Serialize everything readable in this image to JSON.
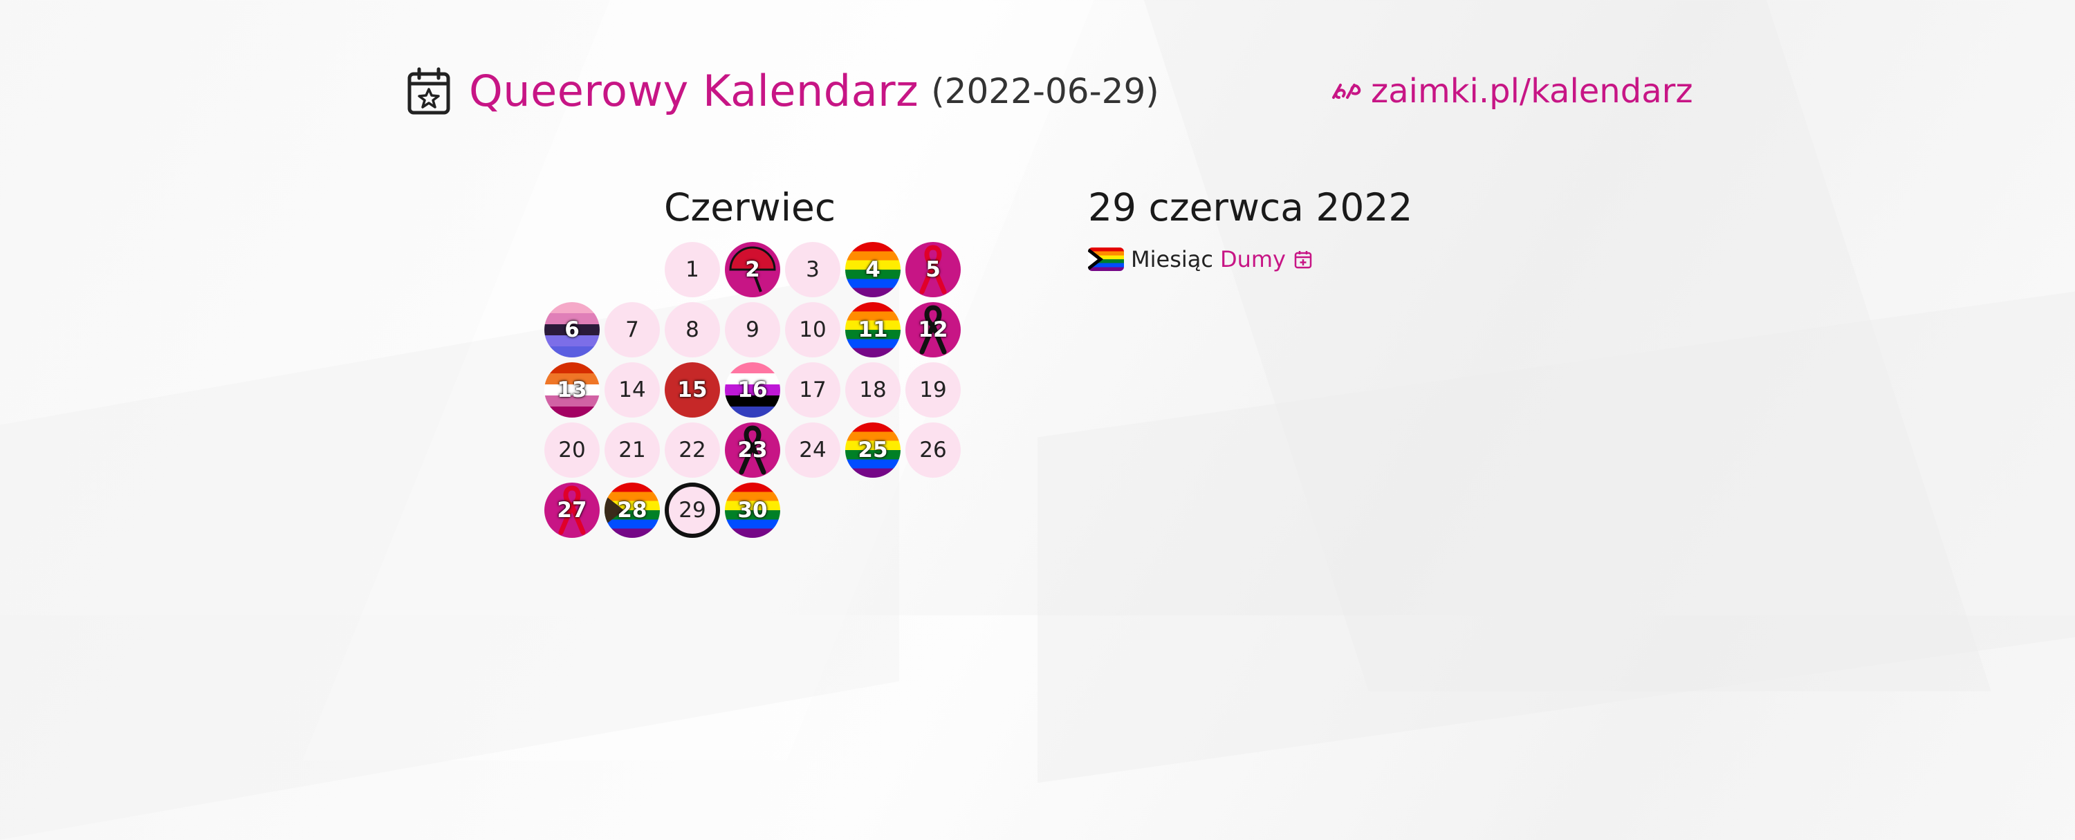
{
  "header": {
    "title": "Queerowy Kalendarz",
    "date": "(2022-06-29)",
    "site_url": "zaimki.pl/kalendarz"
  },
  "calendar": {
    "month": "Czerwiec",
    "days": [
      {
        "label": "1",
        "style": "plain"
      },
      {
        "label": "2",
        "style": "umbrella"
      },
      {
        "label": "3",
        "style": "plain"
      },
      {
        "label": "4",
        "style": "rainbow"
      },
      {
        "label": "5",
        "style": "red-ribbon"
      },
      {
        "label": "6",
        "style": "bi-stripes"
      },
      {
        "label": "7",
        "style": "plain"
      },
      {
        "label": "8",
        "style": "plain"
      },
      {
        "label": "9",
        "style": "plain"
      },
      {
        "label": "10",
        "style": "plain"
      },
      {
        "label": "11",
        "style": "rainbow"
      },
      {
        "label": "12",
        "style": "black-ribbon"
      },
      {
        "label": "13",
        "style": "lesbian"
      },
      {
        "label": "14",
        "style": "plain"
      },
      {
        "label": "15",
        "style": "red-square"
      },
      {
        "label": "16",
        "style": "genderfluid"
      },
      {
        "label": "17",
        "style": "plain"
      },
      {
        "label": "18",
        "style": "plain"
      },
      {
        "label": "19",
        "style": "plain"
      },
      {
        "label": "20",
        "style": "plain"
      },
      {
        "label": "21",
        "style": "plain"
      },
      {
        "label": "22",
        "style": "plain"
      },
      {
        "label": "23",
        "style": "black-ribbon"
      },
      {
        "label": "24",
        "style": "plain"
      },
      {
        "label": "25",
        "style": "rainbow"
      },
      {
        "label": "26",
        "style": "plain"
      },
      {
        "label": "27",
        "style": "red-ribbon"
      },
      {
        "label": "28",
        "style": "progress"
      },
      {
        "label": "29",
        "style": "today"
      },
      {
        "label": "30",
        "style": "rainbow"
      }
    ]
  },
  "selected": {
    "date_label": "29 czerwca 2022",
    "event_label": "Miesiąc",
    "event_link": "Dumy",
    "event_flag_icon": "progress-pride-flag-icon",
    "add_icon": "calendar-add-icon"
  },
  "colors": {
    "accent": "#c71585",
    "day_bg": "#fce1ef"
  }
}
